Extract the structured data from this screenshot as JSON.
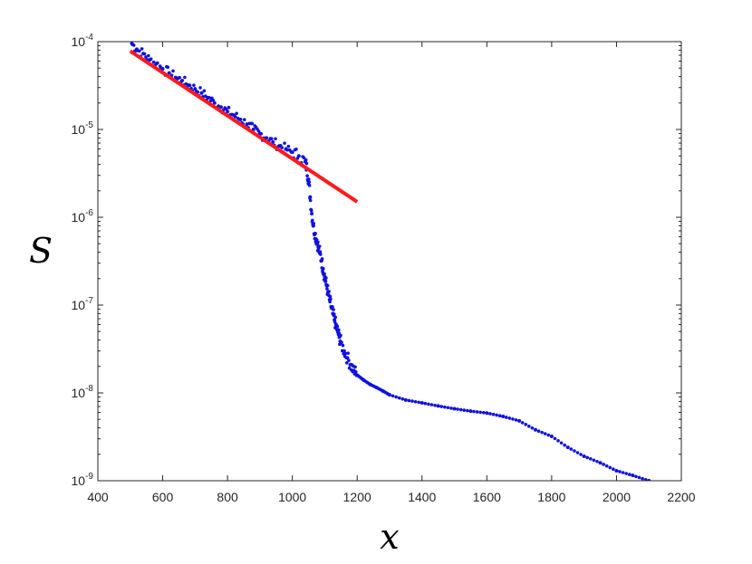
{
  "chart_data": {
    "type": "scatter",
    "xlabel": "x",
    "ylabel": "S",
    "xlim": [
      400,
      2200
    ],
    "ylim": [
      1e-09,
      0.0001
    ],
    "yscale": "log",
    "grid": false,
    "legend": "none",
    "x_ticks": [
      "400",
      "600",
      "800",
      "1000",
      "1200",
      "1400",
      "1600",
      "1800",
      "2000",
      "2200"
    ],
    "y_ticks": [
      {
        "base": "10",
        "exp": "-9"
      },
      {
        "base": "10",
        "exp": "-8"
      },
      {
        "base": "10",
        "exp": "-7"
      },
      {
        "base": "10",
        "exp": "-6"
      },
      {
        "base": "10",
        "exp": "-5"
      },
      {
        "base": "10",
        "exp": "-4"
      }
    ],
    "colors": {
      "points": "#1010e0",
      "fit": "#ff1a1a",
      "axes": "#262626"
    },
    "series": [
      {
        "kind": "points",
        "x": [
          505,
          520,
          540,
          560,
          580,
          600,
          620,
          640,
          660,
          680,
          700,
          720,
          740,
          760,
          780,
          800,
          820,
          840,
          860,
          880,
          900,
          920,
          940,
          960,
          980,
          1000,
          1020,
          1040,
          1045,
          1050,
          1055,
          1060,
          1065,
          1070,
          1075,
          1080,
          1085,
          1090,
          1095,
          1100,
          1105,
          1110,
          1115,
          1120,
          1125,
          1130,
          1135,
          1140,
          1145,
          1150,
          1160,
          1170,
          1180,
          1190,
          1200,
          1220,
          1240,
          1260,
          1280,
          1300,
          1350,
          1400,
          1450,
          1500,
          1550,
          1600,
          1650,
          1700,
          1750,
          1800,
          1850,
          1900,
          1950,
          2000,
          2050,
          2100
        ],
        "y": [
          9.5e-05,
          8.2e-05,
          7.3e-05,
          6.2e-05,
          5.6e-05,
          4.9e-05,
          4.4e-05,
          3.9e-05,
          3.6e-05,
          3.2e-05,
          2.9e-05,
          2.6e-05,
          2.3e-05,
          2e-05,
          1.8e-05,
          1.6e-05,
          1.45e-05,
          1.3e-05,
          1.15e-05,
          1e-05,
          9e-06,
          8e-06,
          7.2e-06,
          6.5e-06,
          6e-06,
          5.5e-06,
          5e-06,
          4.3e-06,
          3.5e-06,
          2.7e-06,
          1.7e-06,
          1.1e-06,
          8e-07,
          6.5e-07,
          5.5e-07,
          4.6e-07,
          3.9e-07,
          3.2e-07,
          2.6e-07,
          2.1e-07,
          1.7e-07,
          1.4e-07,
          1.15e-07,
          9.5e-08,
          8e-08,
          6.8e-08,
          5.8e-08,
          5e-08,
          4.3e-08,
          3.7e-08,
          3e-08,
          2.5e-08,
          2.1e-08,
          1.8e-08,
          1.6e-08,
          1.4e-08,
          1.25e-08,
          1.15e-08,
          1.05e-08,
          9.5e-09,
          8.3e-09,
          7.7e-09,
          7.1e-09,
          6.6e-09,
          6.2e-09,
          5.9e-09,
          5.4e-09,
          4.8e-09,
          3.8e-09,
          3.2e-09,
          2.4e-09,
          1.9e-09,
          1.6e-09,
          1.3e-09,
          1.15e-09,
          1e-09
        ]
      },
      {
        "kind": "line",
        "x": [
          500,
          1200
        ],
        "y": [
          7.8e-05,
          1.5e-06
        ]
      }
    ]
  }
}
